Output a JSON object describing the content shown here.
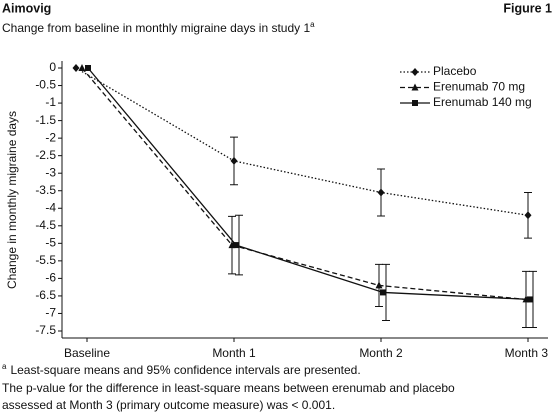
{
  "chart_data": {
    "type": "line",
    "title": "Aimovig",
    "figure_label": "Figure 1",
    "subtitle": "Change from baseline in monthly migraine days in study 1",
    "subtitle_superscript": "a",
    "y_label": "Change in monthly migraine days",
    "categories": [
      "Baseline",
      "Month 1",
      "Month 2",
      "Month 3"
    ],
    "ylim": [
      -7.7,
      0.2
    ],
    "yticks": [
      0,
      -0.5,
      -1,
      -1.5,
      -2,
      -2.5,
      -3,
      -3.5,
      -4,
      -4.5,
      -5,
      -5.5,
      -6,
      -6.5,
      -7,
      -7.5
    ],
    "legend_position": "upper right",
    "series": [
      {
        "name": "Placebo",
        "color": "#111111",
        "dash": "dotted",
        "marker": "diamond",
        "values": [
          0,
          -2.65,
          -3.55,
          -4.2
        ],
        "errors": [
          null,
          0.68,
          0.67,
          0.65
        ]
      },
      {
        "name": "Erenumab 70 mg",
        "color": "#111111",
        "dash": "dashed",
        "marker": "triangle",
        "values": [
          0,
          -5.05,
          -6.2,
          -6.6
        ],
        "errors": [
          null,
          0.82,
          0.6,
          0.8
        ]
      },
      {
        "name": "Erenumab 140 mg",
        "color": "#111111",
        "dash": "solid",
        "marker": "square",
        "values": [
          0,
          -5.05,
          -6.4,
          -6.6
        ],
        "errors": [
          null,
          0.85,
          0.8,
          0.8
        ]
      }
    ],
    "footnote_marker": "a",
    "footnote": "Least-square means and 95% confidence intervals are presented.",
    "notes": [
      "The p-value for the difference in least-square means between erenumab and placebo",
      "assessed at Month 3 (primary outcome measure) was < 0.001."
    ]
  }
}
